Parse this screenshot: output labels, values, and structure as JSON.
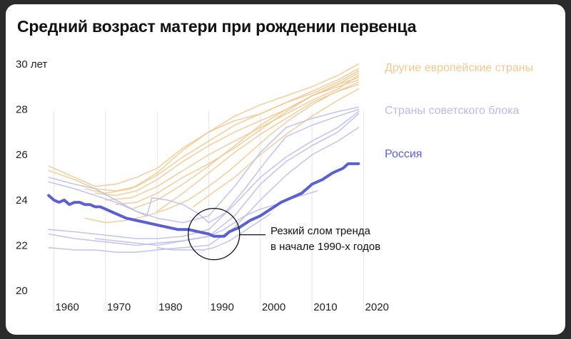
{
  "title": "Средний возраст матери при рождении первенца",
  "colors": {
    "europe": "#f1c890",
    "soviet": "#b8bceb",
    "russia": "#5b5fcf",
    "grid": "#e6e6e6",
    "text": "#111111"
  },
  "chart_data": {
    "type": "line",
    "title": "Средний возраст матери при рождении первенца",
    "xlabel": "",
    "ylabel": "",
    "xlim": [
      1958,
      2022
    ],
    "ylim": [
      19,
      30.5
    ],
    "x_ticks": [
      1960,
      1970,
      1980,
      1990,
      2000,
      2010,
      2020
    ],
    "x_tick_labels": [
      "1960",
      "1970",
      "1980",
      "1990",
      "2000",
      "2010",
      "2020"
    ],
    "y_ticks": [
      20,
      22,
      24,
      26,
      28,
      30
    ],
    "y_tick_labels": [
      "20",
      "22",
      "24",
      "26",
      "28",
      "30 лет"
    ],
    "grid": "vertical",
    "legend": [
      {
        "label": "Другие европейские страны",
        "group": "europe"
      },
      {
        "label": "Страны советского блока",
        "group": "soviet"
      },
      {
        "label": "Россия",
        "group": "russia"
      }
    ],
    "annotation": {
      "lines": [
        "Резкий слом тренда",
        "в начале 1990-х годов"
      ],
      "year": 1991,
      "value": 22.5
    },
    "series": [
      {
        "group": "europe",
        "x": [
          1959,
          1964,
          1968,
          1972,
          1976,
          1980,
          1985,
          1990,
          1995,
          2000,
          2005,
          2010,
          2015,
          2019
        ],
        "y": [
          25.5,
          25.0,
          24.6,
          24.7,
          25.0,
          25.4,
          26.3,
          27.0,
          27.7,
          28.2,
          28.6,
          29.0,
          29.5,
          30.0
        ]
      },
      {
        "group": "europe",
        "x": [
          1959,
          1964,
          1968,
          1972,
          1976,
          1980,
          1985,
          1990,
          1995,
          2000,
          2005,
          2010,
          2015,
          2019
        ],
        "y": [
          25.3,
          24.9,
          24.5,
          24.4,
          24.6,
          25.1,
          25.9,
          26.6,
          27.3,
          27.8,
          28.3,
          28.8,
          29.3,
          29.8
        ]
      },
      {
        "group": "europe",
        "x": [
          1966,
          1970,
          1975,
          1980,
          1985,
          1990,
          1995,
          2000,
          2005,
          2010,
          2015,
          2019
        ],
        "y": [
          24.5,
          24.3,
          24.5,
          25.2,
          26.2,
          27.0,
          27.5,
          27.8,
          28.3,
          28.7,
          29.2,
          29.7
        ]
      },
      {
        "group": "europe",
        "x": [
          1968,
          1972,
          1976,
          1980,
          1985,
          1990,
          1995,
          2000,
          2005,
          2010,
          2015,
          2019
        ],
        "y": [
          24.3,
          24.2,
          24.4,
          24.9,
          25.7,
          26.4,
          27.0,
          27.5,
          28.0,
          28.6,
          29.1,
          29.6
        ]
      },
      {
        "group": "europe",
        "x": [
          1970,
          1975,
          1980,
          1985,
          1990,
          1995,
          2000,
          2005,
          2010,
          2015,
          2019
        ],
        "y": [
          24.0,
          24.1,
          24.6,
          25.3,
          26.0,
          26.6,
          27.2,
          27.8,
          28.4,
          28.9,
          29.5
        ]
      },
      {
        "group": "europe",
        "x": [
          1972,
          1976,
          1980,
          1985,
          1990,
          1995,
          2000,
          2005,
          2010,
          2015,
          2019
        ],
        "y": [
          23.8,
          23.9,
          24.3,
          25.0,
          25.6,
          26.3,
          27.1,
          27.9,
          28.6,
          29.1,
          29.4
        ]
      },
      {
        "group": "europe",
        "x": [
          1975,
          1980,
          1985,
          1990,
          1995,
          2000,
          2005,
          2010,
          2015,
          2019
        ],
        "y": [
          23.6,
          24.0,
          24.7,
          25.5,
          26.4,
          27.3,
          28.0,
          28.6,
          29.0,
          29.3
        ]
      },
      {
        "group": "europe",
        "x": [
          1980,
          1985,
          1990,
          1995,
          2000,
          2005,
          2010,
          2015,
          2019
        ],
        "y": [
          23.5,
          24.3,
          25.2,
          26.1,
          26.9,
          27.6,
          28.3,
          28.8,
          29.1
        ]
      },
      {
        "group": "europe",
        "x": [
          1966,
          1970,
          1974,
          1978,
          1982,
          1986,
          1990,
          1994,
          1998,
          2002,
          2006,
          2010,
          2014,
          2019
        ],
        "y": [
          23.2,
          23.0,
          23.1,
          23.3,
          23.6,
          24.0,
          24.6,
          25.3,
          26.1,
          26.9,
          27.6,
          28.2,
          28.7,
          29.2
        ]
      },
      {
        "group": "europe",
        "x": [
          1987,
          1990,
          1995,
          2000,
          2005,
          2010,
          2015,
          2019
        ],
        "y": [
          23.7,
          24.2,
          25.0,
          26.0,
          26.9,
          27.7,
          28.4,
          28.9
        ]
      },
      {
        "group": "soviet",
        "x": [
          1959,
          1964,
          1968,
          1972,
          1976,
          1980,
          1985,
          1990,
          1995,
          2000,
          2005,
          2010,
          2015,
          2019
        ],
        "y": [
          25.0,
          24.7,
          24.5,
          24.0,
          23.5,
          23.2,
          23.0,
          23.3,
          24.6,
          26.1,
          27.2,
          27.6,
          27.9,
          28.1
        ]
      },
      {
        "group": "soviet",
        "x": [
          1959,
          1964,
          1968,
          1972,
          1976,
          1978,
          1979,
          1982,
          1985,
          1988,
          1990,
          1993,
          1997,
          2001,
          2005,
          2010,
          2015,
          2019
        ],
        "y": [
          24.8,
          24.5,
          24.2,
          23.9,
          23.5,
          23.3,
          24.1,
          24.0,
          23.8,
          23.4,
          23.0,
          23.4,
          24.5,
          25.7,
          26.8,
          27.3,
          27.7,
          28.0
        ]
      },
      {
        "group": "soviet",
        "x": [
          1959,
          1964,
          1968,
          1972,
          1976,
          1980,
          1985,
          1990,
          1995,
          2000,
          2005,
          2010,
          2015,
          2019
        ],
        "y": [
          22.7,
          22.6,
          22.5,
          22.4,
          22.3,
          22.3,
          22.4,
          22.7,
          23.8,
          25.0,
          25.9,
          26.6,
          27.2,
          27.9
        ]
      },
      {
        "group": "soviet",
        "x": [
          1959,
          1964,
          1968,
          1972,
          1976,
          1980,
          1985,
          1990,
          1995,
          2000,
          2005,
          2010,
          2015,
          2019
        ],
        "y": [
          22.5,
          22.3,
          22.2,
          22.1,
          22.0,
          22.1,
          22.2,
          22.4,
          23.3,
          24.7,
          25.7,
          26.4,
          27.0,
          27.8
        ]
      },
      {
        "group": "soviet",
        "x": [
          1959,
          1964,
          1968,
          1972,
          1976,
          1980,
          1985,
          1990,
          1995,
          2000,
          2005,
          2010,
          2015,
          2019
        ],
        "y": [
          21.9,
          21.8,
          21.8,
          21.7,
          21.7,
          21.8,
          21.9,
          22.0,
          22.8,
          24.0,
          25.1,
          26.0,
          26.6,
          27.2
        ]
      },
      {
        "group": "soviet",
        "x": [
          1968,
          1972,
          1976,
          1980,
          1985,
          1990,
          1993,
          1997,
          2000,
          2003,
          2005,
          2008,
          2011
        ],
        "y": [
          22.3,
          22.2,
          22.1,
          22.0,
          22.2,
          22.4,
          22.7,
          23.3,
          23.6,
          23.8,
          24.0,
          24.2,
          24.4
        ]
      },
      {
        "group": "soviet",
        "x": [
          1980,
          1983,
          1986,
          1989,
          1991,
          1994,
          1998,
          2002
        ],
        "y": [
          21.9,
          21.8,
          21.8,
          21.8,
          21.9,
          22.2,
          22.8,
          23.4
        ]
      },
      {
        "group": "russia",
        "name": "Россия",
        "x": [
          1959,
          1960,
          1961,
          1962,
          1963,
          1964,
          1965,
          1966,
          1967,
          1968,
          1969,
          1970,
          1972,
          1974,
          1976,
          1978,
          1980,
          1982,
          1984,
          1986,
          1988,
          1990,
          1991,
          1992,
          1993,
          1994,
          1995,
          1996,
          1998,
          2000,
          2002,
          2004,
          2006,
          2007,
          2008,
          2009,
          2010,
          2012,
          2014,
          2016,
          2017,
          2018,
          2019
        ],
        "y": [
          24.2,
          24.0,
          23.9,
          24.0,
          23.8,
          23.9,
          23.9,
          23.8,
          23.8,
          23.7,
          23.7,
          23.6,
          23.4,
          23.2,
          23.1,
          23.0,
          22.9,
          22.8,
          22.7,
          22.7,
          22.6,
          22.5,
          22.4,
          22.4,
          22.4,
          22.6,
          22.7,
          22.8,
          23.1,
          23.3,
          23.6,
          23.9,
          24.1,
          24.2,
          24.3,
          24.5,
          24.7,
          24.9,
          25.2,
          25.4,
          25.6,
          25.6,
          25.6
        ]
      }
    ]
  }
}
